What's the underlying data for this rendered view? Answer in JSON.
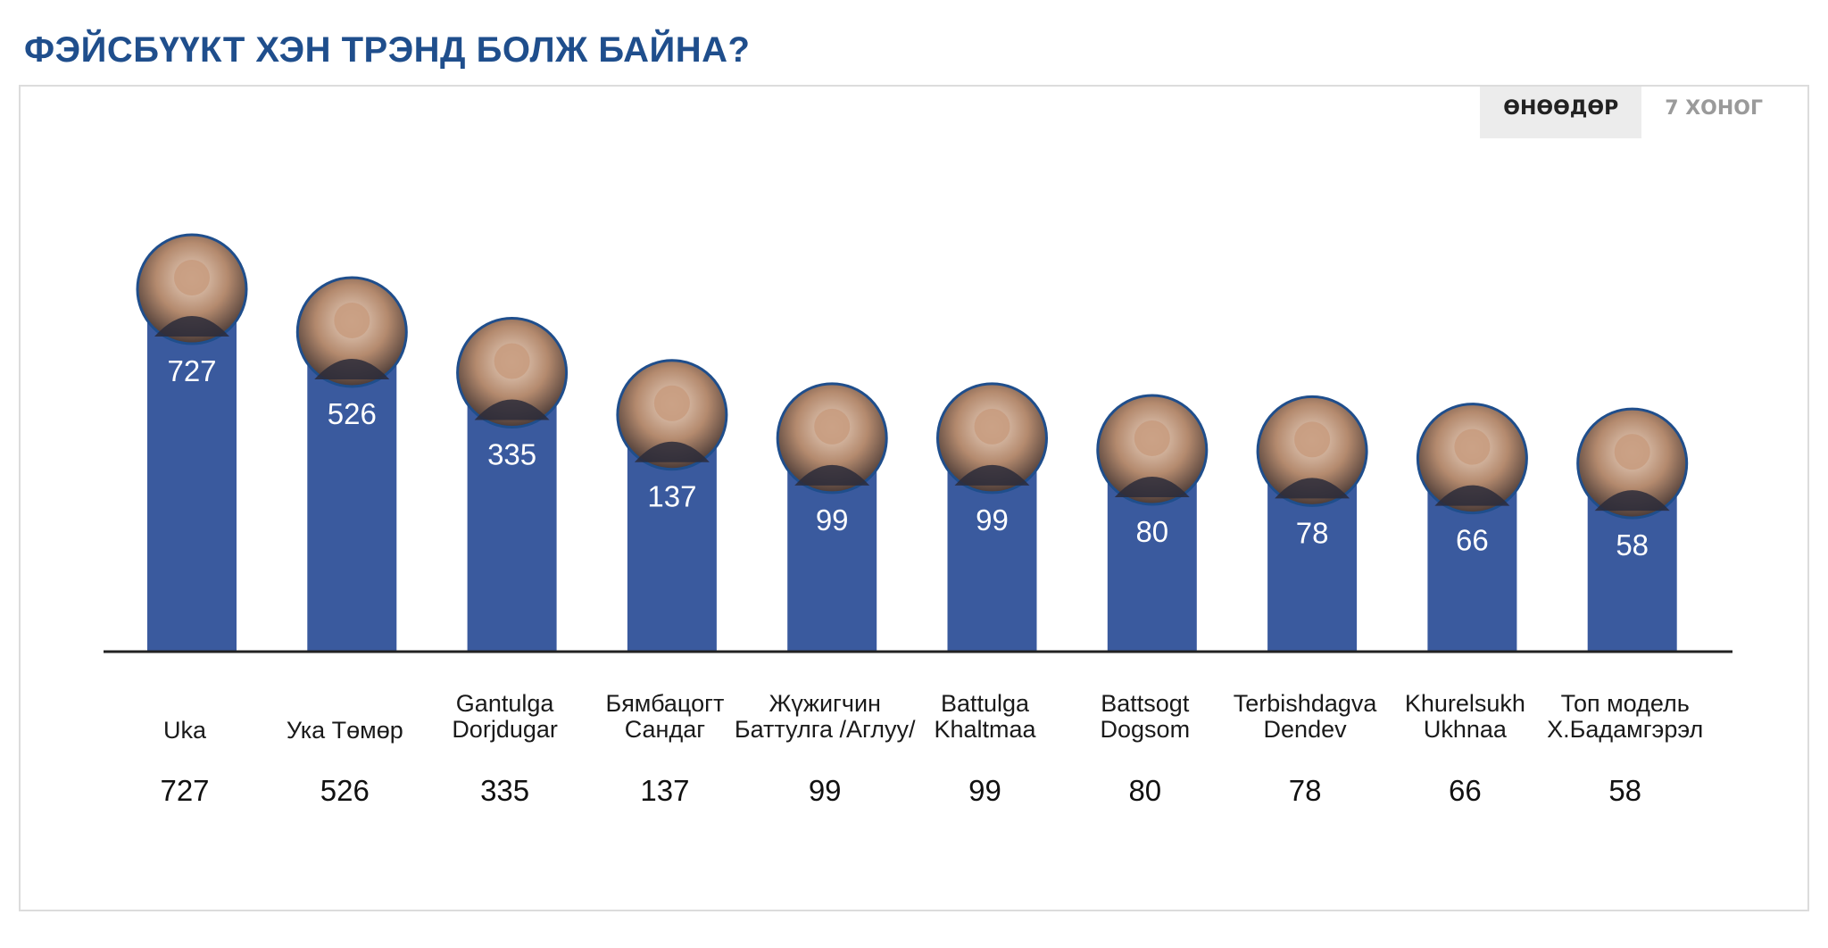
{
  "header": {
    "title": "ФЭЙСБҮҮКТ ХЭН ТРЭНД БОЛЖ БАЙНА?"
  },
  "tabs": [
    {
      "label": "ӨНӨӨДӨР",
      "active": true
    },
    {
      "label": "7 ХОНОГ",
      "active": false
    }
  ],
  "colors": {
    "bar": "#3a5a9e",
    "accent": "#1f4e8c",
    "axis": "#222222"
  },
  "chart_data": {
    "type": "bar",
    "categories": [
      [
        "Uka"
      ],
      [
        "Ука Төмөр"
      ],
      [
        "Gantulga",
        "Dorjdugar"
      ],
      [
        "Бямбацогт",
        "Сандаг"
      ],
      [
        "Жүжигчин",
        "Баттулга /Аглуу/"
      ],
      [
        "Battulga",
        "Khaltmaa"
      ],
      [
        "Battsogt",
        "Dogsom"
      ],
      [
        "Terbishdagva",
        "Dendev"
      ],
      [
        "Khurelsukh",
        "Ukhnaa"
      ],
      [
        "Топ модель",
        "Х.Бадамгэрэл"
      ]
    ],
    "values": [
      727,
      526,
      335,
      137,
      99,
      99,
      80,
      78,
      66,
      58
    ],
    "avatar_icons": [
      "avatar-icon",
      "avatar-icon",
      "avatar-icon",
      "avatar-icon",
      "avatar-icon",
      "avatar-icon",
      "avatar-icon",
      "avatar-icon",
      "avatar-icon",
      "avatar-icon"
    ]
  }
}
